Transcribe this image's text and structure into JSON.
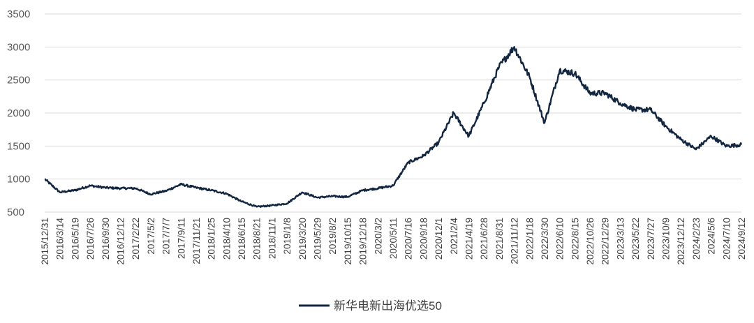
{
  "chart_data": {
    "type": "line",
    "title": "",
    "xlabel": "",
    "ylabel": "",
    "ylim": [
      500,
      3500
    ],
    "yticks": [
      500,
      1000,
      1500,
      2000,
      2500,
      3000,
      3500
    ],
    "grid": "horizontal",
    "legend_position": "bottom-center",
    "line_color": "#13263f",
    "xtick_labels": [
      "2015/12/31",
      "2016/3/14",
      "2016/5/19",
      "2016/7/26",
      "2016/9/30",
      "2016/12/12",
      "2017/2/22",
      "2017/5/2",
      "2017/7/7",
      "2017/9/11",
      "2017/11/21",
      "2018/1/25",
      "2018/4/10",
      "2018/6/15",
      "2018/8/21",
      "2018/11/1",
      "2019/1/8",
      "2019/3/20",
      "2019/5/29",
      "2019/8/2",
      "2019/10/15",
      "2019/12/18",
      "2020/3/2",
      "2020/5/11",
      "2020/7/16",
      "2020/9/18",
      "2020/12/1",
      "2021/2/4",
      "2021/4/19",
      "2021/6/28",
      "2021/8/31",
      "2021/11/12",
      "2022/1/18",
      "2022/3/30",
      "2022/6/10",
      "2022/8/15",
      "2022/10/26",
      "2022/12/29",
      "2023/3/13",
      "2023/5/22",
      "2023/7/27",
      "2023/10/9",
      "2023/12/12",
      "2024/2/23",
      "2024/5/6",
      "2024/7/10",
      "2024/9/12"
    ],
    "series": [
      {
        "name": "新华电新出海优选50",
        "x": [
          "2015/12/31",
          "2016/3/14",
          "2016/5/19",
          "2016/7/26",
          "2016/9/30",
          "2016/12/12",
          "2017/2/22",
          "2017/5/2",
          "2017/7/7",
          "2017/9/11",
          "2017/11/21",
          "2018/1/25",
          "2018/4/10",
          "2018/6/15",
          "2018/8/21",
          "2018/11/1",
          "2019/1/8",
          "2019/3/20",
          "2019/5/29",
          "2019/8/2",
          "2019/10/15",
          "2019/12/18",
          "2020/3/2",
          "2020/5/11",
          "2020/7/16",
          "2020/9/18",
          "2020/12/1",
          "2021/2/4",
          "2021/4/19",
          "2021/6/28",
          "2021/8/31",
          "2021/11/12",
          "2022/1/18",
          "2022/3/30",
          "2022/6/10",
          "2022/8/15",
          "2022/10/26",
          "2022/12/29",
          "2023/3/13",
          "2023/5/22",
          "2023/7/27",
          "2023/10/9",
          "2023/12/12",
          "2024/2/23",
          "2024/5/6",
          "2024/7/10",
          "2024/9/12"
        ],
        "values": [
          1000,
          800,
          830,
          900,
          870,
          860,
          860,
          770,
          820,
          920,
          870,
          830,
          780,
          660,
          580,
          600,
          630,
          800,
          720,
          740,
          730,
          830,
          860,
          900,
          1250,
          1350,
          1550,
          2000,
          1650,
          2150,
          2700,
          3000,
          2550,
          1850,
          2650,
          2600,
          2300,
          2300,
          2150,
          2050,
          2050,
          1800,
          1600,
          1450,
          1650,
          1500,
          1520
        ]
      }
    ]
  }
}
